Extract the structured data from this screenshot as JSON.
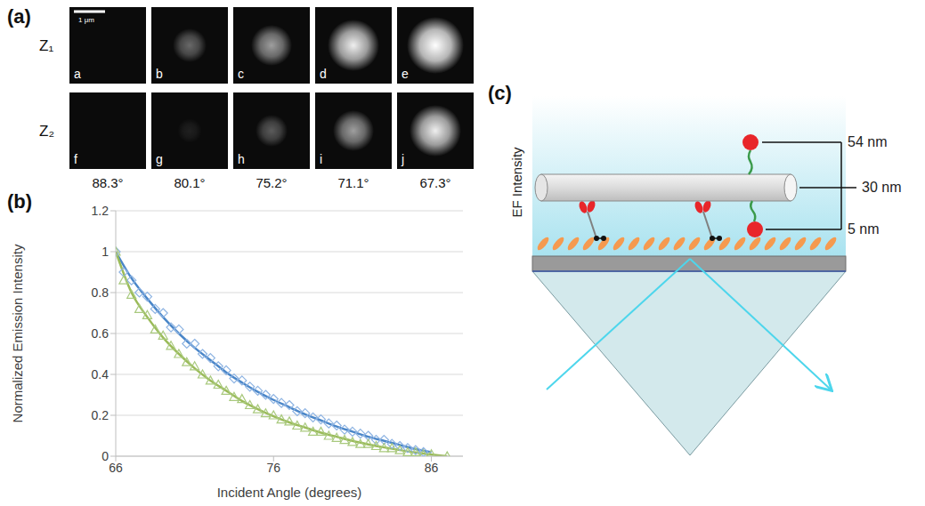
{
  "panel_labels": [
    "(a)",
    "(b)",
    "(c)"
  ],
  "panel_a": {
    "scale_bar": "1 μm",
    "angles": [
      "88.3°",
      "80.1°",
      "75.2°",
      "71.1°",
      "67.3°"
    ],
    "rows": [
      {
        "label": "Z₁",
        "cells": [
          {
            "label": "a",
            "intensity": 0
          },
          {
            "label": "b",
            "intensity": 0.35
          },
          {
            "label": "c",
            "intensity": 0.55
          },
          {
            "label": "d",
            "intensity": 0.85
          },
          {
            "label": "e",
            "intensity": 1
          }
        ]
      },
      {
        "label": "Z₂",
        "cells": [
          {
            "label": "f",
            "intensity": 0
          },
          {
            "label": "g",
            "intensity": 0.08
          },
          {
            "label": "h",
            "intensity": 0.3
          },
          {
            "label": "i",
            "intensity": 0.55
          },
          {
            "label": "j",
            "intensity": 0.85
          }
        ]
      }
    ]
  },
  "chart_data": {
    "type": "scatter",
    "x_label": "Incident Angle (degrees)",
    "y_label": "Normalized Emission Intensity",
    "xlim": [
      66,
      88
    ],
    "xticks": [
      66,
      76,
      86
    ],
    "ylim": [
      0,
      1.2
    ],
    "yticks": [
      0,
      0.2,
      0.4,
      0.6,
      0.8,
      1,
      1.2
    ],
    "grid": true,
    "series": [
      {
        "type": "scatter",
        "marker": "diamond",
        "color": "#8db3e2",
        "x": [
          66,
          66.5,
          67,
          67.5,
          68,
          68.5,
          69,
          69.5,
          70,
          70.5,
          71,
          71.5,
          72,
          72.5,
          73,
          73.5,
          74,
          74.5,
          75,
          75.5,
          76,
          76.5,
          77,
          77.5,
          78,
          78.5,
          79,
          79.5,
          80,
          80.5,
          81,
          81.5,
          82,
          82.5,
          83,
          83.5,
          84,
          84.5,
          85,
          85.5
        ],
        "values": [
          1.0,
          0.9,
          0.86,
          0.8,
          0.78,
          0.72,
          0.7,
          0.63,
          0.62,
          0.55,
          0.55,
          0.5,
          0.48,
          0.44,
          0.42,
          0.38,
          0.37,
          0.34,
          0.32,
          0.3,
          0.28,
          0.26,
          0.25,
          0.22,
          0.21,
          0.19,
          0.18,
          0.16,
          0.15,
          0.13,
          0.12,
          0.11,
          0.1,
          0.08,
          0.08,
          0.06,
          0.05,
          0.04,
          0.03,
          0.02
        ]
      },
      {
        "type": "line",
        "color": "#4a86c8",
        "x": [
          66,
          67,
          68,
          69,
          70,
          71,
          72,
          73,
          74,
          75,
          76,
          77,
          78,
          79,
          80,
          81,
          82,
          83,
          84,
          85,
          86
        ],
        "values": [
          1.0,
          0.87,
          0.77,
          0.68,
          0.6,
          0.53,
          0.47,
          0.41,
          0.36,
          0.315,
          0.275,
          0.24,
          0.205,
          0.175,
          0.145,
          0.12,
          0.095,
          0.075,
          0.055,
          0.035,
          0.02
        ]
      },
      {
        "type": "scatter",
        "marker": "triangle",
        "color": "#a9c97e",
        "x": [
          66,
          66.5,
          67,
          67.5,
          68,
          68.5,
          69,
          69.5,
          70,
          70.5,
          71,
          71.5,
          72,
          72.5,
          73,
          73.5,
          74,
          74.5,
          75,
          75.5,
          76,
          76.5,
          77,
          77.5,
          78,
          78.5,
          79,
          79.5,
          80,
          80.5,
          81,
          81.5,
          82,
          82.5,
          83,
          83.5,
          84,
          84.5,
          85,
          85.5,
          86,
          87
        ],
        "values": [
          1.0,
          0.86,
          0.79,
          0.72,
          0.69,
          0.62,
          0.59,
          0.54,
          0.5,
          0.46,
          0.44,
          0.4,
          0.37,
          0.35,
          0.32,
          0.29,
          0.28,
          0.25,
          0.23,
          0.21,
          0.2,
          0.18,
          0.17,
          0.15,
          0.14,
          0.12,
          0.12,
          0.1,
          0.09,
          0.08,
          0.07,
          0.06,
          0.06,
          0.05,
          0.04,
          0.04,
          0.03,
          0.02,
          0.02,
          0.01,
          0.01,
          0
        ]
      },
      {
        "type": "line",
        "color": "#9bbb59",
        "x": [
          66,
          67,
          68,
          69,
          70,
          71,
          72,
          73,
          74,
          75,
          76,
          77,
          78,
          79,
          80,
          81,
          82,
          83,
          84,
          85,
          86,
          87
        ],
        "values": [
          1.0,
          0.8,
          0.68,
          0.58,
          0.5,
          0.43,
          0.37,
          0.32,
          0.27,
          0.23,
          0.195,
          0.165,
          0.14,
          0.115,
          0.095,
          0.075,
          0.058,
          0.043,
          0.03,
          0.018,
          0.008,
          0
        ]
      }
    ]
  },
  "panel_c": {
    "axis_label": "EF Intensity",
    "distances": [
      "54 nm",
      "30 nm",
      "5 nm"
    ]
  }
}
